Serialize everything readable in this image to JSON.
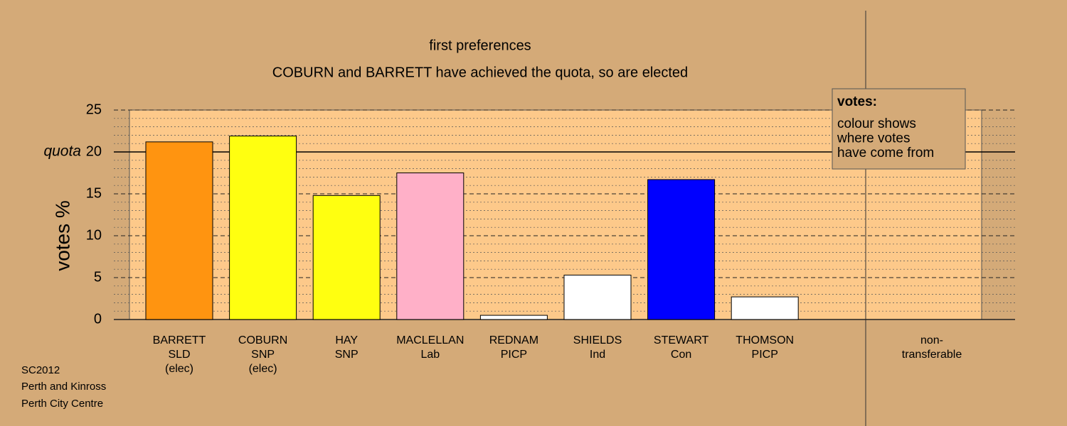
{
  "chart_data": {
    "type": "bar",
    "title": "first preferences",
    "subtitle": "COBURN and BARRETT have achieved the quota, so are elected",
    "y_label": "votes %",
    "categories": [
      [
        "BARRETT",
        "SLD",
        "(elec)"
      ],
      [
        "COBURN",
        "SNP",
        "(elec)"
      ],
      [
        "HAY",
        "SNP"
      ],
      [
        "MACLELLAN",
        "Lab"
      ],
      [
        "REDNAM",
        "PICP"
      ],
      [
        "SHIELDS",
        "Ind"
      ],
      [
        "STEWART",
        "Con"
      ],
      [
        "THOMSON",
        "PICP"
      ],
      [
        "non-",
        "transferable"
      ]
    ],
    "values": [
      21.2,
      21.9,
      14.8,
      17.5,
      0.5,
      5.3,
      16.7,
      2.7,
      null
    ],
    "colors": [
      "#ff9410",
      "#ffff10",
      "#ffff10",
      "#ffb0c8",
      "#ffffff",
      "#ffffff",
      "#0000ff",
      "#ffffff",
      "#ffffff"
    ],
    "ylim": [
      0,
      25
    ],
    "yticks": [
      0,
      5,
      10,
      15,
      20,
      25
    ],
    "minor_yticks": [
      1,
      2,
      3,
      4,
      6,
      7,
      8,
      9,
      11,
      12,
      13,
      14,
      16,
      17,
      18,
      19,
      21,
      22,
      23,
      24
    ],
    "quota": {
      "value": 20,
      "label": "quota"
    },
    "legend_title": "votes:",
    "legend_lines": [
      "colour shows",
      "where votes",
      "have come from"
    ],
    "footer": [
      "SC2012",
      "Perth and Kinross",
      "Perth City Centre"
    ]
  }
}
